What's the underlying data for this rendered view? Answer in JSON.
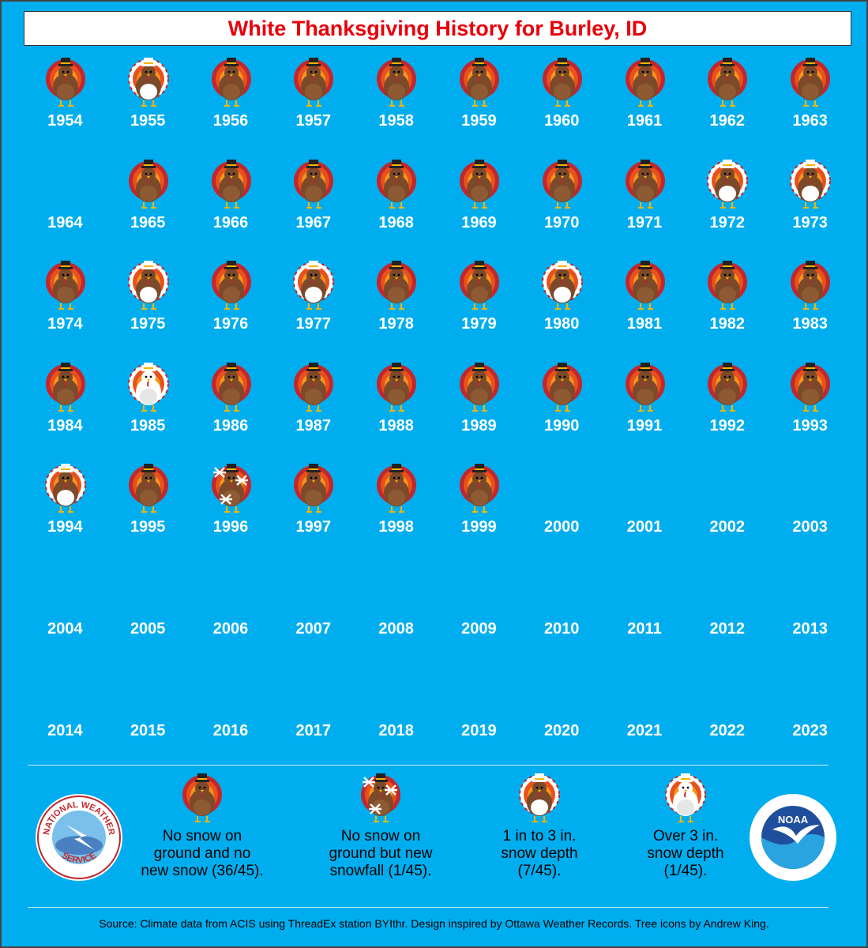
{
  "title": "White Thanksgiving History for Burley, ID",
  "colors": {
    "background": "#00aeef",
    "title_text": "#e8000b",
    "year_text": "#ffffff"
  },
  "years": [
    {
      "year": "1954",
      "category": "none"
    },
    {
      "year": "1955",
      "category": "depth_1_3"
    },
    {
      "year": "1956",
      "category": "none"
    },
    {
      "year": "1957",
      "category": "none"
    },
    {
      "year": "1958",
      "category": "none"
    },
    {
      "year": "1959",
      "category": "none"
    },
    {
      "year": "1960",
      "category": "none"
    },
    {
      "year": "1961",
      "category": "none"
    },
    {
      "year": "1962",
      "category": "none"
    },
    {
      "year": "1963",
      "category": "none"
    },
    {
      "year": "1964",
      "category": "missing"
    },
    {
      "year": "1965",
      "category": "none"
    },
    {
      "year": "1966",
      "category": "none"
    },
    {
      "year": "1967",
      "category": "none"
    },
    {
      "year": "1968",
      "category": "none"
    },
    {
      "year": "1969",
      "category": "none"
    },
    {
      "year": "1970",
      "category": "none"
    },
    {
      "year": "1971",
      "category": "none"
    },
    {
      "year": "1972",
      "category": "depth_1_3"
    },
    {
      "year": "1973",
      "category": "depth_1_3"
    },
    {
      "year": "1974",
      "category": "none"
    },
    {
      "year": "1975",
      "category": "depth_1_3"
    },
    {
      "year": "1976",
      "category": "none"
    },
    {
      "year": "1977",
      "category": "depth_1_3"
    },
    {
      "year": "1978",
      "category": "none"
    },
    {
      "year": "1979",
      "category": "none"
    },
    {
      "year": "1980",
      "category": "depth_1_3"
    },
    {
      "year": "1981",
      "category": "none"
    },
    {
      "year": "1982",
      "category": "none"
    },
    {
      "year": "1983",
      "category": "none"
    },
    {
      "year": "1984",
      "category": "none"
    },
    {
      "year": "1985",
      "category": "depth_over_3"
    },
    {
      "year": "1986",
      "category": "none"
    },
    {
      "year": "1987",
      "category": "none"
    },
    {
      "year": "1988",
      "category": "none"
    },
    {
      "year": "1989",
      "category": "none"
    },
    {
      "year": "1990",
      "category": "none"
    },
    {
      "year": "1991",
      "category": "none"
    },
    {
      "year": "1992",
      "category": "none"
    },
    {
      "year": "1993",
      "category": "none"
    },
    {
      "year": "1994",
      "category": "depth_1_3"
    },
    {
      "year": "1995",
      "category": "none"
    },
    {
      "year": "1996",
      "category": "new_snow"
    },
    {
      "year": "1997",
      "category": "none"
    },
    {
      "year": "1998",
      "category": "none"
    },
    {
      "year": "1999",
      "category": "none"
    },
    {
      "year": "2000",
      "category": "missing"
    },
    {
      "year": "2001",
      "category": "missing"
    },
    {
      "year": "2002",
      "category": "missing"
    },
    {
      "year": "2003",
      "category": "missing"
    },
    {
      "year": "2004",
      "category": "missing"
    },
    {
      "year": "2005",
      "category": "missing"
    },
    {
      "year": "2006",
      "category": "missing"
    },
    {
      "year": "2007",
      "category": "missing"
    },
    {
      "year": "2008",
      "category": "missing"
    },
    {
      "year": "2009",
      "category": "missing"
    },
    {
      "year": "2010",
      "category": "missing"
    },
    {
      "year": "2011",
      "category": "missing"
    },
    {
      "year": "2012",
      "category": "missing"
    },
    {
      "year": "2013",
      "category": "missing"
    },
    {
      "year": "2014",
      "category": "missing"
    },
    {
      "year": "2015",
      "category": "missing"
    },
    {
      "year": "2016",
      "category": "missing"
    },
    {
      "year": "2017",
      "category": "missing"
    },
    {
      "year": "2018",
      "category": "missing"
    },
    {
      "year": "2019",
      "category": "missing"
    },
    {
      "year": "2020",
      "category": "missing"
    },
    {
      "year": "2021",
      "category": "missing"
    },
    {
      "year": "2022",
      "category": "missing"
    },
    {
      "year": "2023",
      "category": "missing"
    }
  ],
  "legend": [
    {
      "category": "none",
      "lines": [
        "No snow on",
        "ground and no",
        "new snow (36/45)."
      ]
    },
    {
      "category": "new_snow",
      "lines": [
        "No snow on",
        "ground but new",
        "snowfall (1/45)."
      ]
    },
    {
      "category": "depth_1_3",
      "lines": [
        "1 in to 3 in.",
        "snow depth",
        "(7/45)."
      ]
    },
    {
      "category": "depth_over_3",
      "lines": [
        "Over 3 in.",
        "snow depth",
        "(1/45)."
      ]
    }
  ],
  "logos": {
    "left": {
      "name": "nws-logo",
      "text": "NATIONAL WEATHER SERVICE"
    },
    "right": {
      "name": "noaa-logo",
      "text": "NOAA"
    }
  },
  "source": "Source: Climate data from ACIS using ThreadEx station BYIthr. Design inspired by Ottawa Weather Records. Tree icons by Andrew King."
}
